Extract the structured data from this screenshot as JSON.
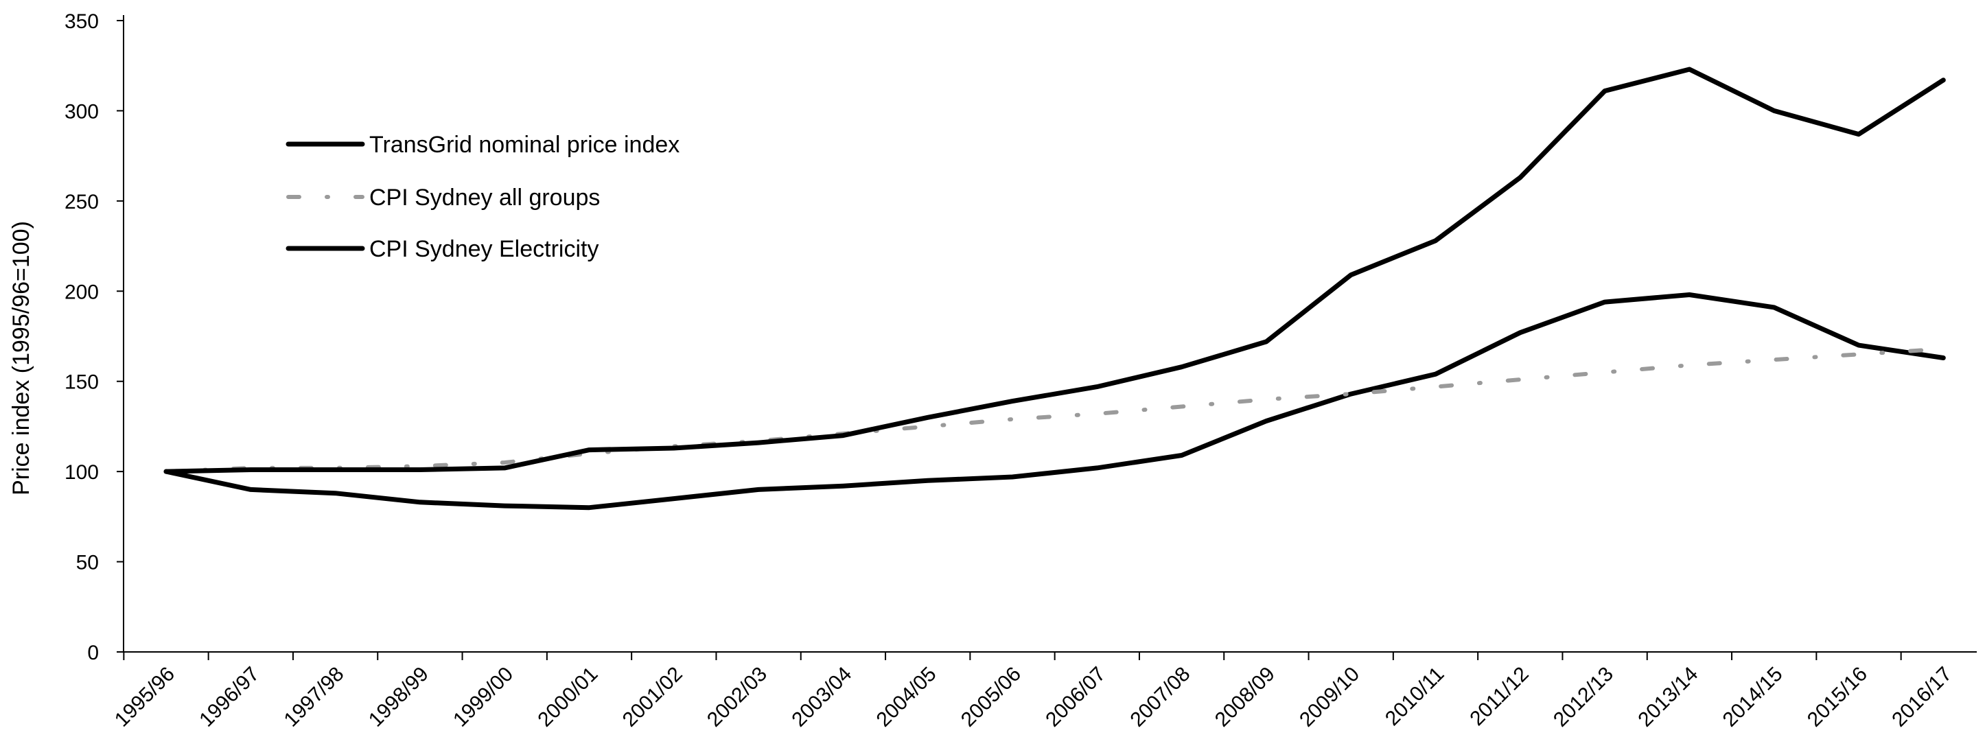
{
  "chart_data": {
    "type": "line",
    "title": "",
    "xlabel": "",
    "ylabel": "Price index (1995/96=100)",
    "ylim": [
      0,
      350
    ],
    "yticks": [
      0,
      50,
      100,
      150,
      200,
      250,
      300,
      350
    ],
    "grid": false,
    "legend_position": "top-left",
    "categories": [
      "1995/96",
      "1996/97",
      "1997/98",
      "1998/99",
      "1999/00",
      "2000/01",
      "2001/02",
      "2002/03",
      "2003/04",
      "2004/05",
      "2005/06",
      "2006/07",
      "2007/08",
      "2008/09",
      "2009/10",
      "2010/11",
      "2011/12",
      "2012/13",
      "2013/14",
      "2014/15",
      "2015/16",
      "2016/17"
    ],
    "series": [
      {
        "name": "TransGrid nominal price index",
        "style": "solid",
        "color": "#000000",
        "values": [
          100,
          90,
          88,
          83,
          81,
          80,
          85,
          90,
          92,
          95,
          97,
          102,
          109,
          128,
          143,
          154,
          177,
          194,
          198,
          191,
          170,
          163
        ]
      },
      {
        "name": "CPI Sydney all groups",
        "style": "dotted",
        "color": "#9a9a9a",
        "values": [
          100,
          102,
          102,
          103,
          105,
          110,
          114,
          117,
          121,
          125,
          129,
          132,
          136,
          140,
          143,
          147,
          151,
          155,
          159,
          162,
          165,
          168
        ]
      },
      {
        "name": "CPI Sydney Electricity",
        "style": "solid",
        "color": "#000000",
        "values": [
          100,
          101,
          101,
          101,
          102,
          112,
          113,
          116,
          120,
          130,
          139,
          147,
          158,
          172,
          209,
          228,
          263,
          311,
          323,
          300,
          287,
          317
        ]
      }
    ]
  }
}
